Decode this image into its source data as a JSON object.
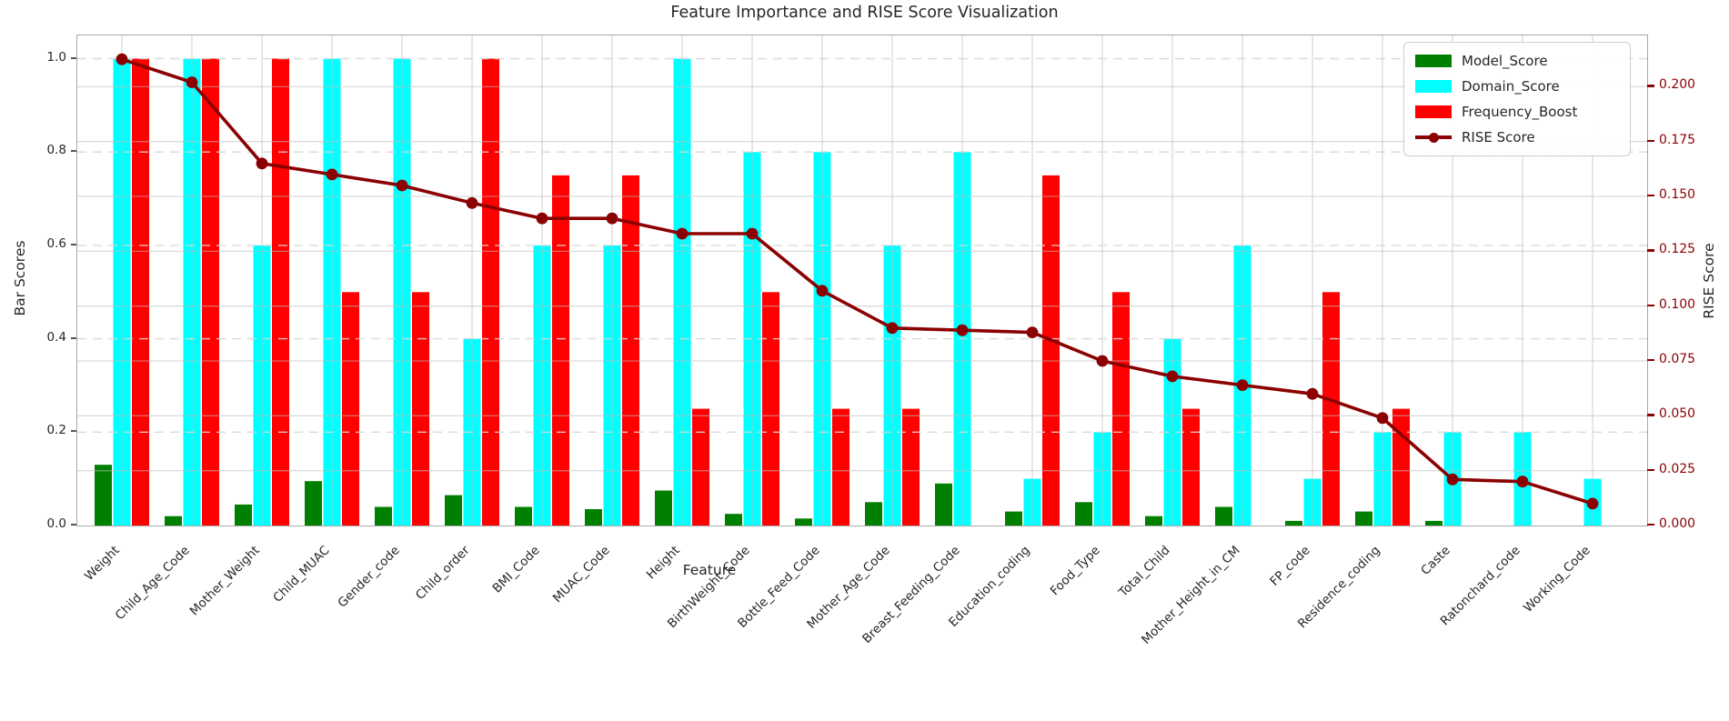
{
  "title": "Feature Importance and RISE Score Visualization",
  "xlabel": "Feature",
  "ylabel_left": "Bar Scores",
  "ylabel_right": "RISE Score",
  "legend": {
    "items": [
      {
        "label": "Model_Score",
        "color": "#008000",
        "type": "patch"
      },
      {
        "label": "Domain_Score",
        "color": "#00ffff",
        "type": "patch"
      },
      {
        "label": "Frequency_Boost",
        "color": "#ff0000",
        "type": "patch"
      },
      {
        "label": "RISE Score",
        "color": "#8b0000",
        "type": "line"
      }
    ],
    "position": "upper right"
  },
  "axes": {
    "left_tick_labels": [
      "0.0",
      "0.2",
      "0.4",
      "0.6",
      "0.8",
      "1.0"
    ],
    "right_tick_labels": [
      "0.000",
      "0.025",
      "0.050",
      "0.075",
      "0.100",
      "0.125",
      "0.150",
      "0.175",
      "0.200"
    ],
    "left_axis_color": "#262626",
    "right_axis_color": "#8b0000",
    "grid": true
  },
  "chart_data": {
    "type": "bar",
    "title": "Feature Importance and RISE Score Visualization",
    "xlabel": "Feature",
    "ylabel": "Bar Scores",
    "ylabel_right": "RISE Score",
    "ylim_left": [
      0.0,
      1.05
    ],
    "ylim_right": [
      0.0,
      0.2234
    ],
    "grid": true,
    "legend_position": "upper right",
    "categories": [
      "Weight",
      "Child_Age_Code",
      "Mother_Weight",
      "Child_MUAC",
      "Gender_code",
      "Child_order",
      "BMI_Code",
      "MUAC_Code",
      "Height",
      "BirthWeight_Code",
      "Bottle_Feed_Code",
      "Mother_Age_Code",
      "Breast_Feeding_Code",
      "Education_coding",
      "Food_Type",
      "Total_Child",
      "Mother_Height_in_CM",
      "FP_code",
      "Residence_coding",
      "Caste",
      "Ratonchard_code",
      "Working_Code"
    ],
    "series": [
      {
        "name": "Model_Score",
        "color": "#008000",
        "values": [
          0.13,
          0.02,
          0.045,
          0.095,
          0.04,
          0.065,
          0.04,
          0.035,
          0.075,
          0.025,
          0.015,
          0.05,
          0.09,
          0.03,
          0.05,
          0.02,
          0.04,
          0.01,
          0.03,
          0.01,
          0.0,
          0.0
        ]
      },
      {
        "name": "Domain_Score",
        "color": "#00ffff",
        "values": [
          1.0,
          1.0,
          0.6,
          1.0,
          1.0,
          0.4,
          0.6,
          0.6,
          1.0,
          0.8,
          0.8,
          0.6,
          0.8,
          0.1,
          0.2,
          0.4,
          0.6,
          0.1,
          0.2,
          0.2,
          0.2,
          0.1
        ]
      },
      {
        "name": "Frequency_Boost",
        "color": "#ff0000",
        "values": [
          1.0,
          1.0,
          1.0,
          0.5,
          0.5,
          1.0,
          0.75,
          0.75,
          0.25,
          0.5,
          0.25,
          0.25,
          0.0,
          0.75,
          0.5,
          0.25,
          0.0,
          0.5,
          0.25,
          0.0,
          0.0,
          0.0
        ]
      }
    ],
    "line_series": {
      "name": "RISE Score",
      "color": "#8b0000",
      "axis": "right",
      "marker": "o",
      "values": [
        0.2125,
        0.202,
        0.165,
        0.16,
        0.155,
        0.147,
        0.14,
        0.14,
        0.133,
        0.133,
        0.107,
        0.09,
        0.089,
        0.088,
        0.075,
        0.068,
        0.064,
        0.06,
        0.049,
        0.021,
        0.02,
        0.01
      ]
    }
  }
}
